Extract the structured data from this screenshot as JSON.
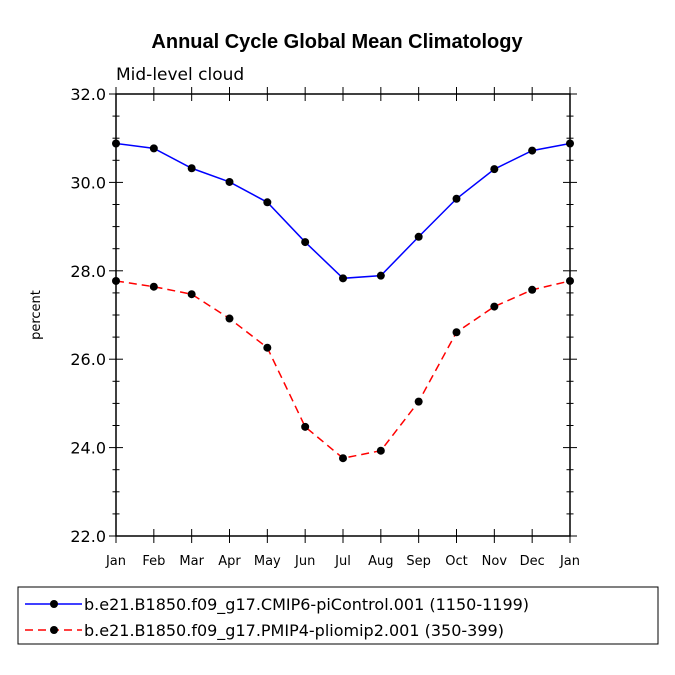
{
  "chart_data": {
    "type": "line",
    "title": "Annual Cycle Global Mean Climatology",
    "subtitle": "Mid-level cloud",
    "xlabel": "",
    "ylabel": "percent",
    "categories": [
      "Jan",
      "Feb",
      "Mar",
      "Apr",
      "May",
      "Jun",
      "Jul",
      "Aug",
      "Sep",
      "Oct",
      "Nov",
      "Dec",
      "Jan"
    ],
    "ylim": [
      22.0,
      32.0
    ],
    "yticks": [
      "22.0",
      "24.0",
      "26.0",
      "28.0",
      "30.0",
      "32.0"
    ],
    "series": [
      {
        "name": "b.e21.B1850.f09_g17.CMIP6-piControl.001 (1150-1199)",
        "color": "#0000ff",
        "style": "solid",
        "values": [
          30.88,
          30.77,
          30.32,
          30.01,
          29.55,
          28.65,
          27.83,
          27.89,
          28.77,
          29.63,
          30.3,
          30.72,
          30.88
        ]
      },
      {
        "name": "b.e21.B1850.f09_g17.PMIP4-pliomip2.001 (350-399)",
        "color": "#ff0000",
        "style": "dashed",
        "values": [
          27.77,
          27.64,
          27.47,
          26.92,
          26.26,
          24.47,
          23.76,
          23.93,
          25.04,
          26.61,
          27.19,
          27.57,
          27.77
        ]
      }
    ]
  }
}
